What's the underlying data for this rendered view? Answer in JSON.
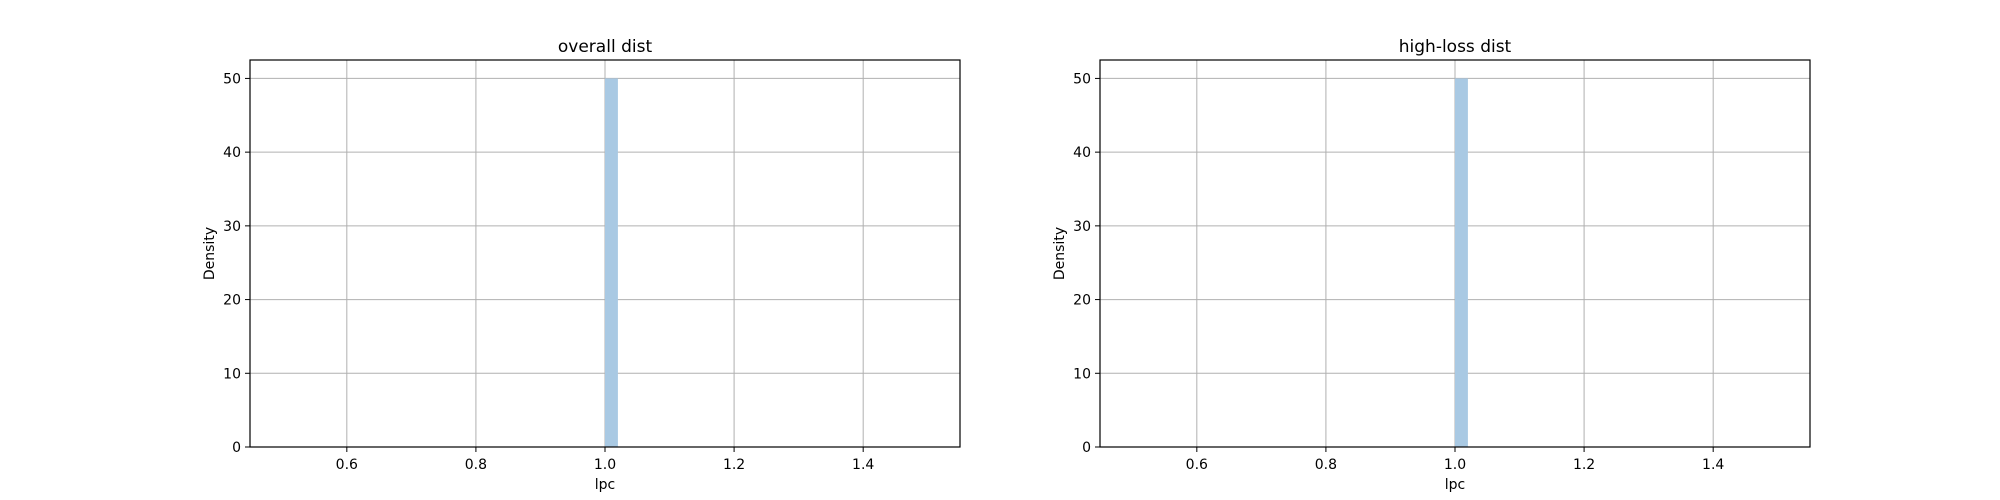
{
  "chart_data": [
    {
      "type": "bar",
      "title": "overall dist",
      "xlabel": "lpc",
      "ylabel": "Density",
      "xlim": [
        0.45,
        1.55
      ],
      "ylim": [
        0,
        52.5
      ],
      "xticks": [
        0.6,
        0.8,
        1.0,
        1.2,
        1.4
      ],
      "xtick_labels": [
        "0.6",
        "0.8",
        "1.0",
        "1.2",
        "1.4"
      ],
      "yticks": [
        0,
        10,
        20,
        30,
        40,
        50
      ],
      "ytick_labels": [
        "0",
        "10",
        "20",
        "30",
        "40",
        "50"
      ],
      "grid": true,
      "bar_color": "#a9c9e3",
      "bars": [
        {
          "x0": 1.0,
          "x1": 1.02,
          "value": 50
        }
      ]
    },
    {
      "type": "bar",
      "title": "high-loss dist",
      "xlabel": "lpc",
      "ylabel": "Density",
      "xlim": [
        0.45,
        1.55
      ],
      "ylim": [
        0,
        52.5
      ],
      "xticks": [
        0.6,
        0.8,
        1.0,
        1.2,
        1.4
      ],
      "xtick_labels": [
        "0.6",
        "0.8",
        "1.0",
        "1.2",
        "1.4"
      ],
      "yticks": [
        0,
        10,
        20,
        30,
        40,
        50
      ],
      "ytick_labels": [
        "0",
        "10",
        "20",
        "30",
        "40",
        "50"
      ],
      "grid": true,
      "bar_color": "#a9c9e3",
      "bars": [
        {
          "x0": 1.0,
          "x1": 1.02,
          "value": 50
        }
      ]
    }
  ]
}
